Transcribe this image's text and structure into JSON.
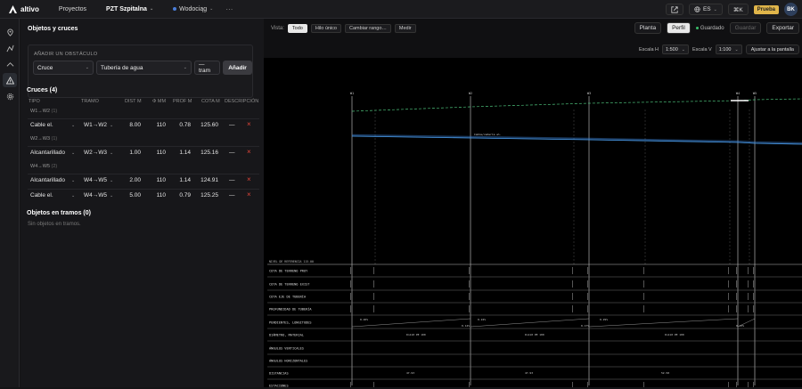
{
  "topbar": {
    "brand": "altivo",
    "nav_projects": "Proyectos",
    "project_name": "PZT Szpitalna",
    "section_name": "Wodociąg",
    "more": "···",
    "lang": "ES",
    "shortcut": "⌘K",
    "badge": "Prueba",
    "avatar": "BK"
  },
  "panel": {
    "title": "Objetos y cruces",
    "add_title": "AÑADIR UN OBSTÁCULO",
    "type_value": "Cruce",
    "subtype_value": "Tubería de agua",
    "segment_value": "— tram",
    "add_button": "Añadir",
    "crossings_title": "Cruces (4)",
    "columns": [
      "TIPO",
      "TRAMO",
      "DIST M",
      "Φ MM",
      "PROF M",
      "COTA M",
      "DESCRIPCIÓN"
    ],
    "groups": [
      {
        "label": "W1→W2",
        "count": "(1)"
      },
      {
        "label": "W2→W3",
        "count": "(1)"
      },
      {
        "label": "W4→W5",
        "count": "(2)"
      }
    ],
    "rows": [
      {
        "tipo": "Cable el.",
        "tramo": "W1→W2",
        "dist": "8.00",
        "phi": "110",
        "prof": "0.78",
        "cota": "125.60",
        "desc": "—"
      },
      {
        "tipo": "Alcantarillado",
        "tramo": "W2→W3",
        "dist": "1.00",
        "phi": "110",
        "prof": "1.14",
        "cota": "125.16",
        "desc": "—"
      },
      {
        "tipo": "Alcantarillado",
        "tramo": "W4→W5",
        "dist": "2.00",
        "phi": "110",
        "prof": "1.14",
        "cota": "124.91",
        "desc": "—"
      },
      {
        "tipo": "Cable el.",
        "tramo": "W4→W5",
        "dist": "5.00",
        "phi": "110",
        "prof": "0.79",
        "cota": "125.25",
        "desc": "—"
      }
    ],
    "objects_title": "Objetos en tramos (0)",
    "objects_empty": "Sin objetos en tramos."
  },
  "viewbar": {
    "label": "Vista:",
    "buttons": [
      "Todo",
      "Hilo único",
      "Cambiar rango…",
      "Medir"
    ]
  },
  "toolbar": {
    "plan": "Planta",
    "profile": "Perfil",
    "saved": "Guardado",
    "save": "Guardar",
    "export": "Exportar",
    "scale_h_label": "Escala H",
    "scale_h": "1:500",
    "scale_v_label": "Escala V",
    "scale_v": "1:100",
    "fit": "Ajustar a la pantalla"
  },
  "profile": {
    "nodes": [
      "W1",
      "W2",
      "W3",
      "W4",
      "W5"
    ],
    "crossing_label": "Cable/cañería el.",
    "reference_level": "NIVEL DE REFERENCIA 115.00",
    "bands": [
      "COTA DE TERRENO PROY",
      "COTA DE TERRENO EXIST",
      "COTA EJE DE TUBERÍA",
      "PROFUNDIDAD DE TUBERÍA",
      "PENDIENTES, LONGITUDES",
      "DIÁMETRO, MATERIAL",
      "ÁNGULOS VERTICALES",
      "ÁNGULOS HORIZONTALES",
      "DISTANCIAS",
      "ESTACIONES"
    ],
    "slopes": [
      "0.26%",
      "0.14%",
      "0.24%",
      "0.17%",
      "0.29%",
      "0.13%"
    ],
    "materials": [
      "Dn110 PE 100",
      "Dn110 PE 100",
      "Dn110 PE 100"
    ],
    "distances": [
      "47.93",
      "47.93",
      "52.58"
    ],
    "colors": {
      "terrain": "#4cc07a",
      "pipe": "#3a7fd0",
      "grid": "#3a3a3a"
    }
  }
}
